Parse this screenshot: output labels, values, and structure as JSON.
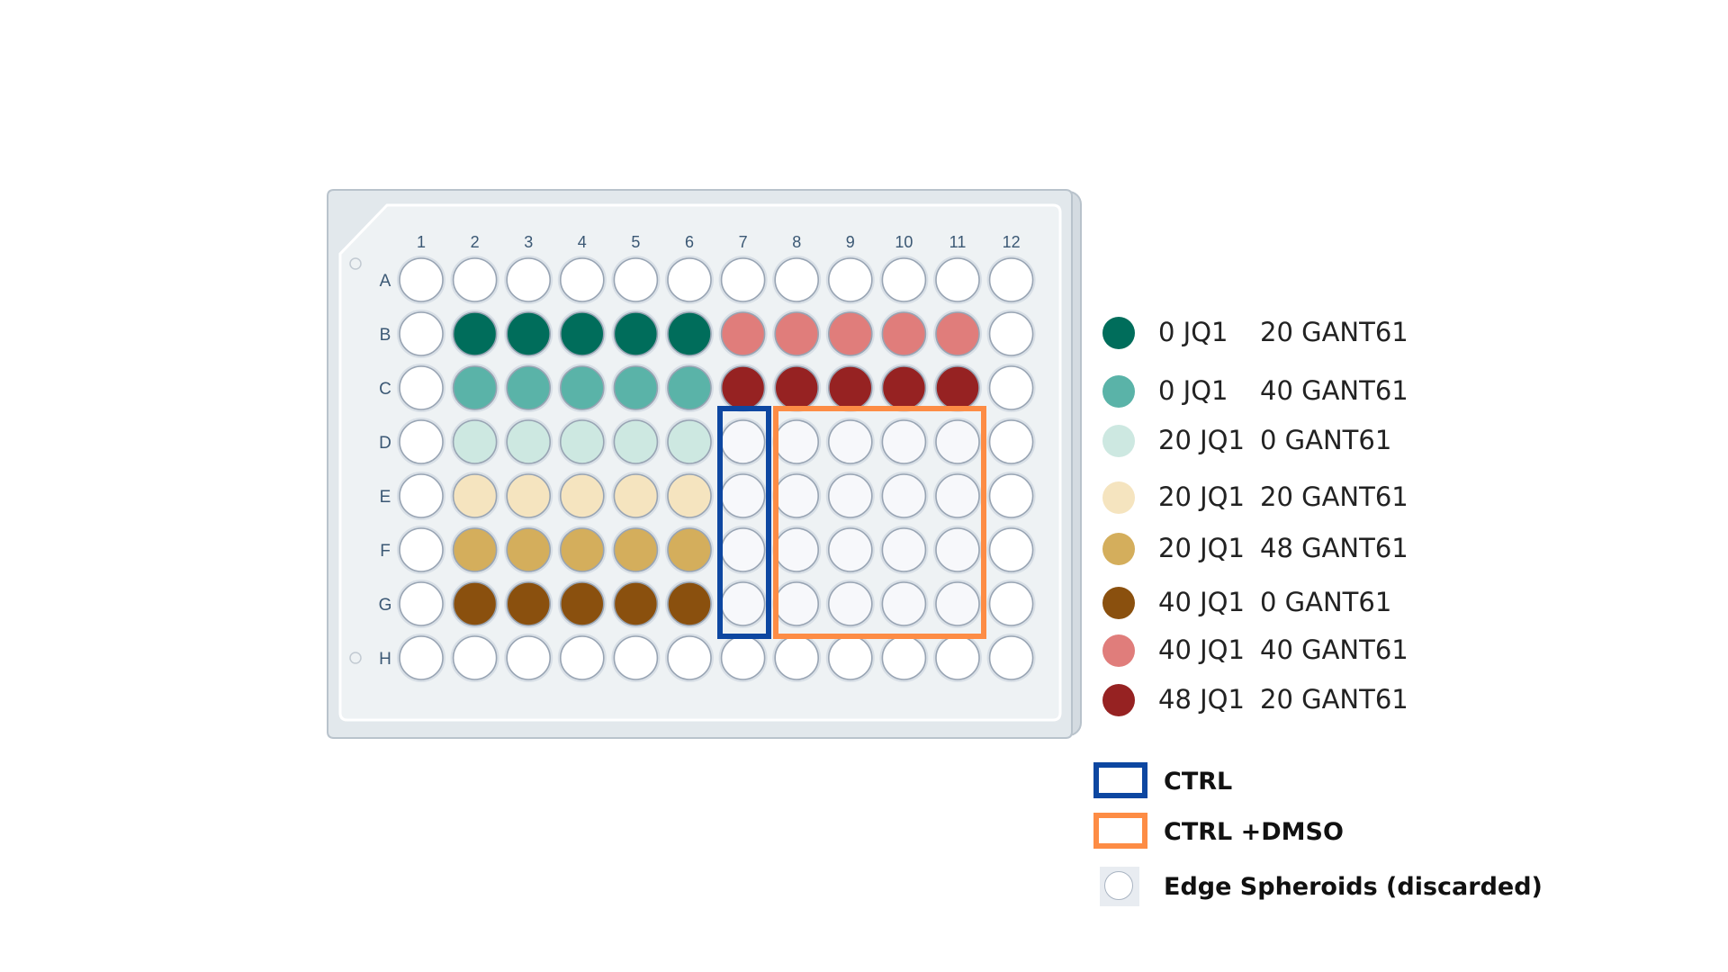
{
  "plate": {
    "columns": [
      "1",
      "2",
      "3",
      "4",
      "5",
      "6",
      "7",
      "8",
      "9",
      "10",
      "11",
      "12"
    ],
    "rows": [
      "A",
      "B",
      "C",
      "D",
      "E",
      "F",
      "G",
      "H"
    ],
    "empty_well_color": "#f7f8fb",
    "edge_well_color": "#ffffff",
    "well_layout": [
      [
        "edge",
        "edge",
        "edge",
        "edge",
        "edge",
        "edge",
        "edge",
        "edge",
        "edge",
        "edge",
        "edge",
        "edge"
      ],
      [
        "edge",
        "c1",
        "c1",
        "c1",
        "c1",
        "c1",
        "c7",
        "c7",
        "c7",
        "c7",
        "c7",
        "edge"
      ],
      [
        "edge",
        "c2",
        "c2",
        "c2",
        "c2",
        "c2",
        "c8",
        "c8",
        "c8",
        "c8",
        "c8",
        "edge"
      ],
      [
        "edge",
        "c3",
        "c3",
        "c3",
        "c3",
        "c3",
        "ctrl",
        "dmso",
        "dmso",
        "dmso",
        "dmso",
        "edge"
      ],
      [
        "edge",
        "c4",
        "c4",
        "c4",
        "c4",
        "c4",
        "ctrl",
        "dmso",
        "dmso",
        "dmso",
        "dmso",
        "edge"
      ],
      [
        "edge",
        "c5",
        "c5",
        "c5",
        "c5",
        "c5",
        "ctrl",
        "dmso",
        "dmso",
        "dmso",
        "dmso",
        "edge"
      ],
      [
        "edge",
        "c6",
        "c6",
        "c6",
        "c6",
        "c6",
        "ctrl",
        "dmso",
        "dmso",
        "dmso",
        "dmso",
        "edge"
      ],
      [
        "edge",
        "edge",
        "edge",
        "edge",
        "edge",
        "edge",
        "edge",
        "edge",
        "edge",
        "edge",
        "edge",
        "edge"
      ]
    ]
  },
  "conditions": [
    {
      "id": "c1",
      "jq1": "0 JQ1",
      "gant": "20 GANT61",
      "color": "#006d5b"
    },
    {
      "id": "c2",
      "jq1": "0 JQ1",
      "gant": "40 GANT61",
      "color": "#5ab3a8"
    },
    {
      "id": "c3",
      "jq1": "20 JQ1",
      "gant": "0 GANT61",
      "color": "#cde8e1"
    },
    {
      "id": "c4",
      "jq1": "20 JQ1",
      "gant": "20 GANT61",
      "color": "#f5e4bf"
    },
    {
      "id": "c5",
      "jq1": "20 JQ1",
      "gant": "48 GANT61",
      "color": "#d4ae5c"
    },
    {
      "id": "c6",
      "jq1": "40 JQ1",
      "gant": "0 GANT61",
      "color": "#8a500e"
    },
    {
      "id": "c7",
      "jq1": "40 JQ1",
      "gant": "40 GANT61",
      "color": "#e07d7b"
    },
    {
      "id": "c8",
      "jq1": "48 JQ1",
      "gant": "20 GANT61",
      "color": "#962222"
    }
  ],
  "controls": {
    "ctrl_label": "CTRL",
    "ctrl_color": "#0d47a1",
    "dmso_label": "CTRL +DMSO",
    "dmso_color": "#fd8c45",
    "edge_label": "Edge Spheroids (discarded)"
  }
}
